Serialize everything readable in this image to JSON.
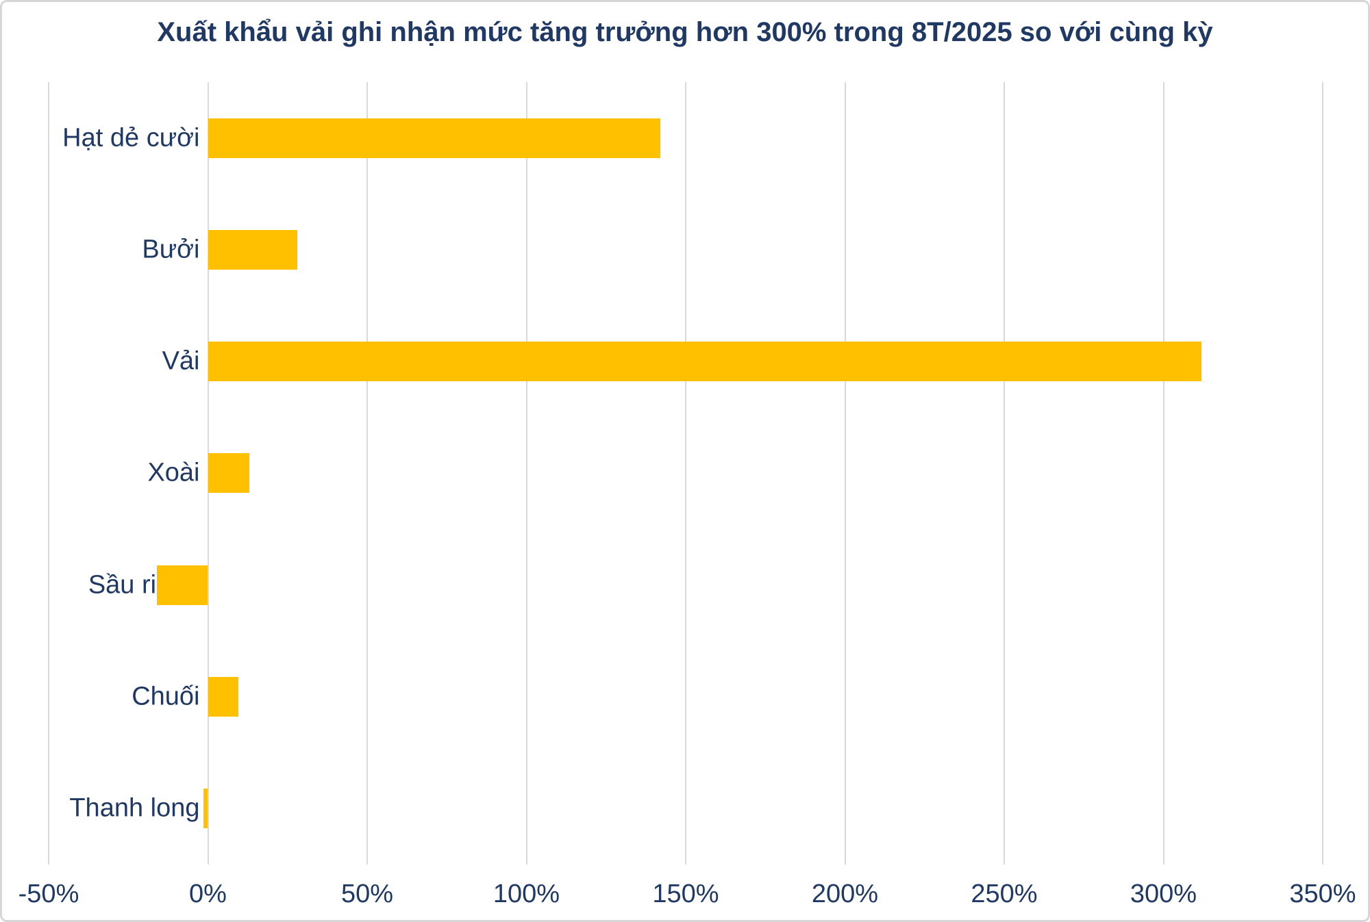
{
  "title": "Xuất khẩu vải ghi nhận mức tăng trưởng hơn 300% trong 8T/2025 so với cùng kỳ",
  "colors": {
    "bar": "#FFC000",
    "text": "#1F3864",
    "gridline": "#D9D9D9",
    "background": "#FFFFFF",
    "card_border": "#D6D6D6"
  },
  "chart_data": {
    "type": "bar",
    "orientation": "horizontal",
    "title": "Xuất khẩu vải ghi nhận mức tăng trưởng hơn 300% trong 8T/2025 so với cùng kỳ",
    "categories": [
      "Hạt dẻ cười",
      "Bưởi",
      "Vải",
      "Xoài",
      "Sầu riêng",
      "Chuối",
      "Thanh long"
    ],
    "values": [
      142,
      28,
      312,
      13,
      -16,
      9.5,
      -1.5
    ],
    "unit": "%",
    "xlabel": "",
    "ylabel": "",
    "xlim": [
      -50,
      350
    ],
    "x_ticks": [
      -50,
      0,
      50,
      100,
      150,
      200,
      250,
      300,
      350
    ],
    "x_tick_labels": [
      "-50%",
      "0%",
      "50%",
      "100%",
      "150%",
      "200%",
      "250%",
      "300%",
      "350%"
    ],
    "grid": "vertical-gridlines-on",
    "legend": "none",
    "bar_color": "#FFC000"
  }
}
